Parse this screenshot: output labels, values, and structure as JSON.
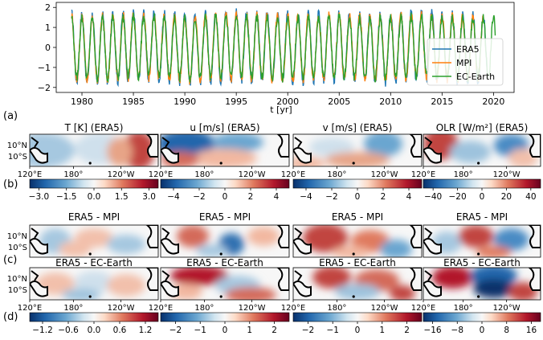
{
  "chart_data": [
    {
      "type": "line",
      "panel_label": "(a)",
      "xlabel": "t [yr]",
      "ylabel": "",
      "xlim": [
        1977.5,
        2022
      ],
      "ylim": [
        -2.25,
        2.25
      ],
      "xticks": [
        "1980",
        "1985",
        "1990",
        "1995",
        "2000",
        "2005",
        "2010",
        "2015",
        "2020"
      ],
      "xtick_values": [
        1980,
        1985,
        1990,
        1995,
        2000,
        2005,
        2010,
        2015,
        2020
      ],
      "yticks": [
        "2",
        "1",
        "0",
        "−1",
        "−2"
      ],
      "ytick_values": [
        2,
        1,
        0,
        -1,
        -2
      ],
      "legend_position": "right",
      "oscillation_period_yr": 1,
      "series": [
        {
          "name": "ERA5",
          "color": "#1f77b4",
          "x_range": [
            1979,
            2019.5
          ],
          "amplitude": 1.7
        },
        {
          "name": "MPI",
          "color": "#ff7f0e",
          "x_range": [
            1979,
            2019.0
          ],
          "amplitude": 1.6
        },
        {
          "name": "EC-Earth",
          "color": "#2ca02c",
          "x_range": [
            1979,
            2020.2
          ],
          "amplitude": 1.5
        }
      ]
    },
    {
      "type": "heatmap",
      "panel_label": "(b)",
      "colormap": "RdBu_r",
      "lon_ticks": [
        "120°E",
        "180°",
        "120°W"
      ],
      "lat_ticks": [
        "10°N",
        "10°S"
      ],
      "panels": [
        {
          "title": "T [K] (ERA5)",
          "cbar_ticks": [
            "−3.0",
            "−1.5",
            "0.0",
            "1.5",
            "3.0"
          ],
          "cbar_range": [
            -3.5,
            3.5
          ]
        },
        {
          "title": "u [m/s] (ERA5)",
          "cbar_ticks": [
            "−4",
            "−2",
            "0",
            "2",
            "4"
          ],
          "cbar_range": [
            -5,
            5
          ]
        },
        {
          "title": "v [m/s] (ERA5)",
          "cbar_ticks": [
            "−4",
            "−2",
            "0",
            "2",
            "4"
          ],
          "cbar_range": [
            -5,
            5
          ]
        },
        {
          "title": "OLR [W/m²] (ERA5)",
          "cbar_ticks": [
            "−40",
            "−20",
            "0",
            "20",
            "40"
          ],
          "cbar_range": [
            -48,
            48
          ]
        }
      ]
    },
    {
      "type": "heatmap",
      "panel_label": "(c)",
      "colormap": "RdBu_r",
      "rows": [
        {
          "titles": [
            "ERA5 - MPI",
            "ERA5 - MPI",
            "ERA5 - MPI",
            "ERA5 - MPI"
          ]
        },
        {
          "titles": [
            "ERA5 - EC-Earth",
            "ERA5 - EC-Earth",
            "ERA5 - EC-Earth",
            "ERA5 - EC-Earth"
          ]
        }
      ]
    },
    {
      "type": "heatmap",
      "panel_label": "(d)",
      "colormap": "RdBu_r",
      "colorbars": [
        {
          "ticks": [
            "−1.2",
            "−0.6",
            "0.0",
            "0.6",
            "1.2"
          ],
          "range": [
            -1.5,
            1.5
          ]
        },
        {
          "ticks": [
            "−2",
            "−1",
            "0",
            "1",
            "2"
          ],
          "range": [
            -2.6,
            2.6
          ]
        },
        {
          "ticks": [
            "−2",
            "−1",
            "0",
            "1",
            "2"
          ],
          "range": [
            -2.6,
            2.6
          ]
        },
        {
          "ticks": [
            "−16",
            "−8",
            "0",
            "8",
            "16"
          ],
          "range": [
            -19,
            19
          ]
        }
      ]
    }
  ]
}
